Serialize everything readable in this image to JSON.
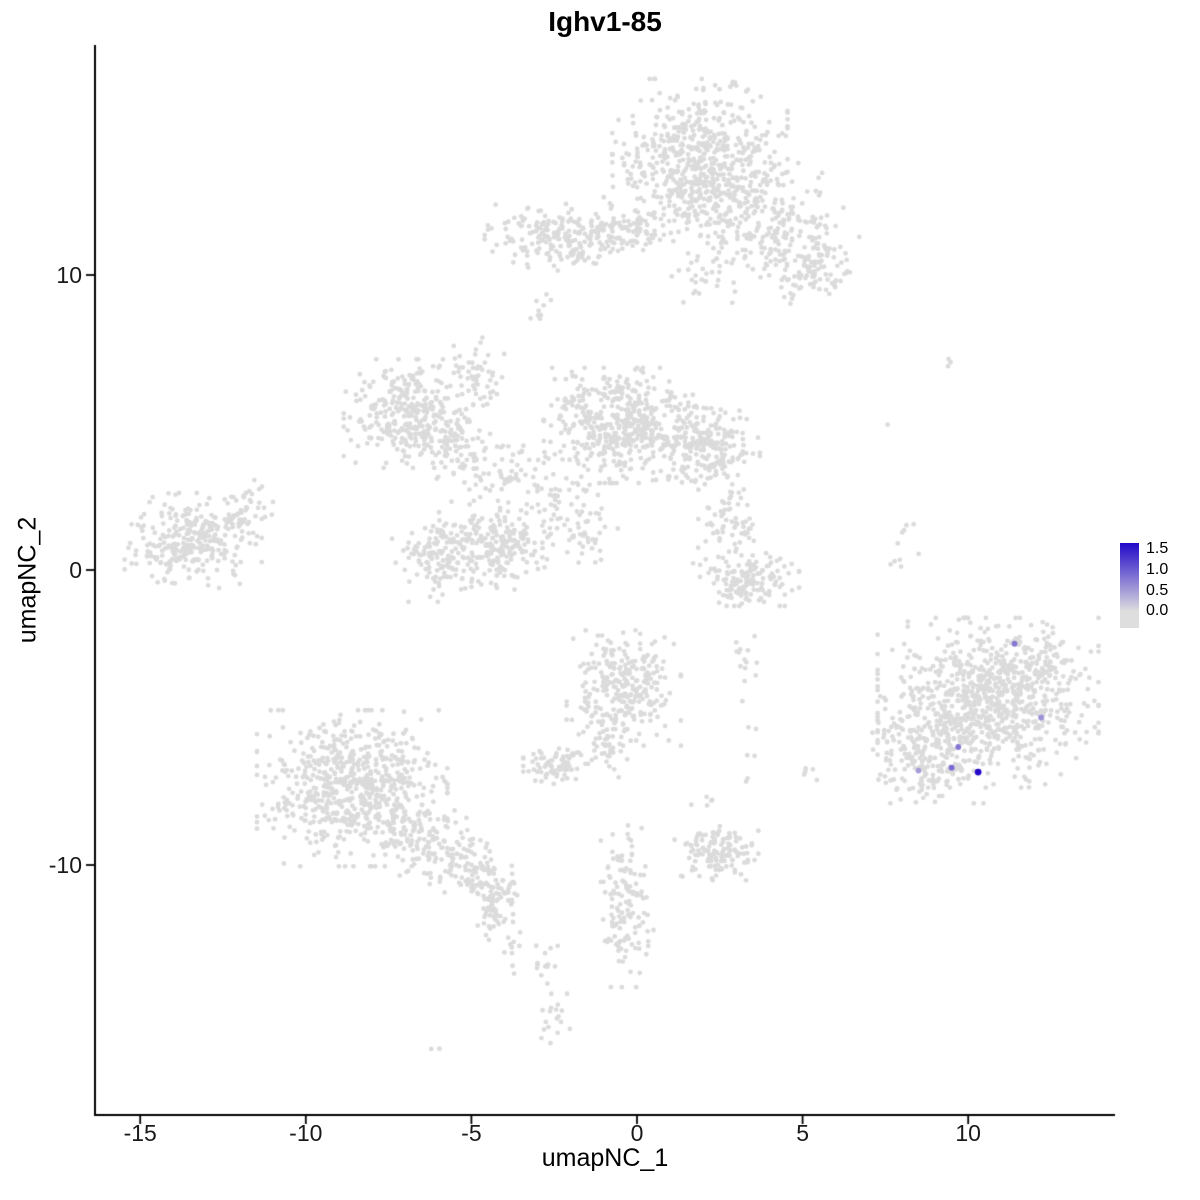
{
  "chart_data": {
    "type": "scatter",
    "title": "Ighv1-85",
    "xlabel": "umapNC_1",
    "ylabel": "umapNC_2",
    "xlim": [
      -16.4,
      14.4
    ],
    "ylim": [
      -18.5,
      17.8
    ],
    "x_ticks": [
      -15,
      -10,
      -5,
      0,
      5,
      10
    ],
    "y_ticks": [
      -10,
      0,
      10
    ],
    "grid": false,
    "legend_position": "right",
    "colors": {
      "background_point": "#DBDBDB",
      "expression_low": "#DEDEDE",
      "expression_high": "#2209C8",
      "axis": "#000000"
    },
    "legend": {
      "vmin": -0.4,
      "vmax": 1.65,
      "ticks": [
        {
          "label": "1.5",
          "value": 1.5
        },
        {
          "label": "1.0",
          "value": 1.0
        },
        {
          "label": "0.5",
          "value": 0.5
        },
        {
          "label": "0.0",
          "value": 0.0
        }
      ]
    },
    "clusters": [
      {
        "cx": 1.9,
        "cy": 14.0,
        "sx": 1.15,
        "sy": 1.15,
        "n": 520
      },
      {
        "cx": 2.6,
        "cy": 12.6,
        "sx": 1.3,
        "sy": 0.8,
        "n": 180
      },
      {
        "cx": 4.6,
        "cy": 11.2,
        "sx": 0.9,
        "sy": 0.8,
        "n": 170,
        "rot": -35
      },
      {
        "cx": 5.3,
        "cy": 10.1,
        "sx": 0.6,
        "sy": 0.5,
        "n": 60
      },
      {
        "cx": 2.2,
        "cy": 10.3,
        "sx": 0.5,
        "sy": 0.9,
        "n": 45
      },
      {
        "cx": -2.3,
        "cy": 11.3,
        "sx": 1.0,
        "sy": 0.5,
        "n": 200
      },
      {
        "cx": -0.6,
        "cy": 11.6,
        "sx": 0.9,
        "sy": 0.45,
        "n": 80
      },
      {
        "cx": -2.9,
        "cy": 8.8,
        "sx": 0.18,
        "sy": 0.25,
        "n": 10
      },
      {
        "cx": -6.9,
        "cy": 5.3,
        "sx": 0.85,
        "sy": 0.8,
        "n": 300
      },
      {
        "cx": -5.6,
        "cy": 4.2,
        "sx": 0.7,
        "sy": 0.6,
        "n": 90,
        "rot": -30
      },
      {
        "cx": -4.8,
        "cy": 6.5,
        "sx": 0.35,
        "sy": 0.6,
        "n": 55
      },
      {
        "cx": -4.2,
        "cy": 3.4,
        "sx": 0.7,
        "sy": 0.6,
        "n": 60
      },
      {
        "cx": -0.4,
        "cy": 4.9,
        "sx": 1.05,
        "sy": 0.85,
        "n": 480
      },
      {
        "cx": 2.1,
        "cy": 4.1,
        "sx": 0.7,
        "sy": 0.6,
        "n": 210
      },
      {
        "cx": -2.6,
        "cy": 2.2,
        "sx": 0.8,
        "sy": 0.8,
        "n": 70
      },
      {
        "cx": -1.5,
        "cy": 1.2,
        "sx": 0.4,
        "sy": 0.7,
        "n": 35
      },
      {
        "cx": -5.9,
        "cy": 0.3,
        "sx": 0.65,
        "sy": 0.6,
        "n": 150
      },
      {
        "cx": -3.9,
        "cy": 0.6,
        "sx": 0.55,
        "sy": 0.55,
        "n": 120
      },
      {
        "cx": -4.9,
        "cy": 1.3,
        "sx": 0.7,
        "sy": 0.35,
        "n": 60
      },
      {
        "cx": -13.4,
        "cy": 1.0,
        "sx": 0.9,
        "sy": 0.7,
        "n": 290
      },
      {
        "cx": -11.9,
        "cy": 1.9,
        "sx": 0.5,
        "sy": 0.5,
        "n": 40
      },
      {
        "cx": 2.7,
        "cy": 1.6,
        "sx": 0.45,
        "sy": 0.6,
        "n": 60
      },
      {
        "cx": 3.4,
        "cy": -0.3,
        "sx": 0.65,
        "sy": 0.4,
        "n": 150
      },
      {
        "cx": -0.4,
        "cy": -4.0,
        "sx": 0.75,
        "sy": 0.85,
        "n": 270
      },
      {
        "cx": -0.9,
        "cy": -5.9,
        "sx": 0.3,
        "sy": 0.5,
        "n": 40
      },
      {
        "cx": -2.4,
        "cy": -6.6,
        "sx": 0.45,
        "sy": 0.3,
        "n": 80
      },
      {
        "cx": -8.6,
        "cy": -7.4,
        "sx": 1.25,
        "sy": 1.15,
        "n": 650
      },
      {
        "cx": -6.7,
        "cy": -9.0,
        "sx": 0.8,
        "sy": 0.6,
        "n": 120,
        "rot": -35
      },
      {
        "cx": -5.0,
        "cy": -10.2,
        "sx": 0.7,
        "sy": 0.45,
        "n": 110,
        "rot": -30
      },
      {
        "cx": -4.2,
        "cy": -11.4,
        "sx": 0.3,
        "sy": 0.5,
        "n": 60
      },
      {
        "cx": -3.8,
        "cy": -12.8,
        "sx": 0.15,
        "sy": 0.4,
        "n": 10
      },
      {
        "cx": -0.4,
        "cy": -10.5,
        "sx": 0.3,
        "sy": 0.8,
        "n": 70
      },
      {
        "cx": -0.3,
        "cy": -12.3,
        "sx": 0.35,
        "sy": 0.8,
        "n": 60
      },
      {
        "cx": 2.4,
        "cy": -9.6,
        "sx": 0.55,
        "sy": 0.4,
        "n": 130
      },
      {
        "cx": -2.7,
        "cy": -13.3,
        "sx": 0.2,
        "sy": 0.35,
        "n": 14
      },
      {
        "cx": -2.6,
        "cy": -15.4,
        "sx": 0.25,
        "sy": 0.45,
        "n": 18
      },
      {
        "cx": -6.0,
        "cy": -16.2,
        "sx": 0.1,
        "sy": 0.1,
        "n": 2
      },
      {
        "cx": 10.6,
        "cy": -4.5,
        "sx": 1.45,
        "sy": 1.25,
        "n": 850
      },
      {
        "cx": 8.8,
        "cy": -6.3,
        "sx": 0.8,
        "sy": 0.7,
        "n": 170
      },
      {
        "cx": 12.1,
        "cy": -3.2,
        "sx": 0.5,
        "sy": 0.5,
        "n": 60
      },
      {
        "cx": 3.3,
        "cy": -3.0,
        "sx": 0.25,
        "sy": 0.6,
        "n": 12
      },
      {
        "cx": 3.35,
        "cy": -5.8,
        "sx": 0.15,
        "sy": 1.0,
        "n": 8
      },
      {
        "cx": 5.2,
        "cy": -6.9,
        "sx": 0.2,
        "sy": 0.25,
        "n": 5
      },
      {
        "cx": 2.1,
        "cy": -8.1,
        "sx": 0.2,
        "sy": 0.2,
        "n": 5
      },
      {
        "cx": 7.8,
        "cy": 0.3,
        "sx": 0.2,
        "sy": 0.4,
        "n": 5
      },
      {
        "cx": 8.1,
        "cy": 1.2,
        "sx": 0.2,
        "sy": 0.4,
        "n": 5
      },
      {
        "cx": 9.4,
        "cy": 6.8,
        "sx": 0.15,
        "sy": 0.25,
        "n": 3
      },
      {
        "cx": 7.6,
        "cy": 4.7,
        "sx": 0.1,
        "sy": 0.1,
        "n": 1
      },
      {
        "cx": -2.0,
        "cy": 7.0,
        "sx": 0.15,
        "sy": 0.3,
        "n": 3
      }
    ],
    "expressing_cells": [
      {
        "x": 11.4,
        "y": -2.5,
        "value": 0.8
      },
      {
        "x": 12.2,
        "y": -5.0,
        "value": 0.6
      },
      {
        "x": 9.7,
        "y": -6.0,
        "value": 0.8
      },
      {
        "x": 9.5,
        "y": -6.7,
        "value": 0.9
      },
      {
        "x": 10.3,
        "y": -6.85,
        "value": 1.7
      },
      {
        "x": 8.5,
        "y": -6.8,
        "value": 0.5
      }
    ]
  }
}
